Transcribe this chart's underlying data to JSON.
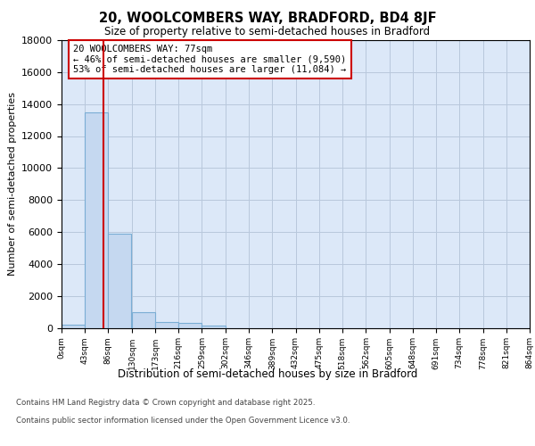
{
  "title_line1": "20, WOOLCOMBERS WAY, BRADFORD, BD4 8JF",
  "title_line2": "Size of property relative to semi-detached houses in Bradford",
  "xlabel": "Distribution of semi-detached houses by size in Bradford",
  "ylabel": "Number of semi-detached properties",
  "annotation_line1": "20 WOOLCOMBERS WAY: 77sqm",
  "annotation_line2": "← 46% of semi-detached houses are smaller (9,590)",
  "annotation_line3": "53% of semi-detached houses are larger (11,084) →",
  "property_size_sqm": 77,
  "bin_edges": [
    0,
    43,
    86,
    130,
    173,
    216,
    259,
    302,
    346,
    389,
    432,
    475,
    518,
    562,
    605,
    648,
    691,
    734,
    778,
    821,
    864
  ],
  "bin_labels": [
    "0sqm",
    "43sqm",
    "86sqm",
    "130sqm",
    "173sqm",
    "216sqm",
    "259sqm",
    "302sqm",
    "346sqm",
    "389sqm",
    "432sqm",
    "475sqm",
    "518sqm",
    "562sqm",
    "605sqm",
    "648sqm",
    "691sqm",
    "734sqm",
    "778sqm",
    "821sqm",
    "864sqm"
  ],
  "bar_heights": [
    200,
    13500,
    5900,
    1000,
    350,
    300,
    150,
    0,
    0,
    0,
    0,
    0,
    0,
    0,
    0,
    0,
    0,
    0,
    0,
    0
  ],
  "bar_color": "#c5d8f0",
  "bar_edge_color": "#7aadd4",
  "vline_color": "#cc0000",
  "vline_x": 77,
  "ylim": [
    0,
    18000
  ],
  "yticks": [
    0,
    2000,
    4000,
    6000,
    8000,
    10000,
    12000,
    14000,
    16000,
    18000
  ],
  "bg_color": "#dce8f8",
  "grid_color": "#b8c8dc",
  "footer_line1": "Contains HM Land Registry data © Crown copyright and database right 2025.",
  "footer_line2": "Contains public sector information licensed under the Open Government Licence v3.0."
}
